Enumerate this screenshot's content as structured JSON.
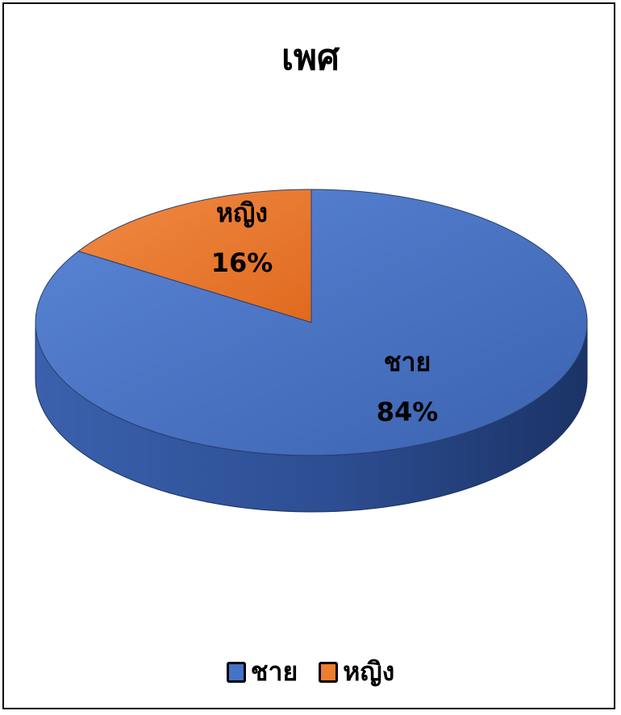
{
  "chart_data": {
    "type": "pie",
    "title": "เพศ",
    "legend_position": "bottom",
    "slices": [
      {
        "label": "ชาย",
        "value": 84,
        "value_label": "84%",
        "color": "#4472C4"
      },
      {
        "label": "หญิง",
        "value": 16,
        "value_label": "16%",
        "color": "#ED7D31"
      }
    ]
  }
}
